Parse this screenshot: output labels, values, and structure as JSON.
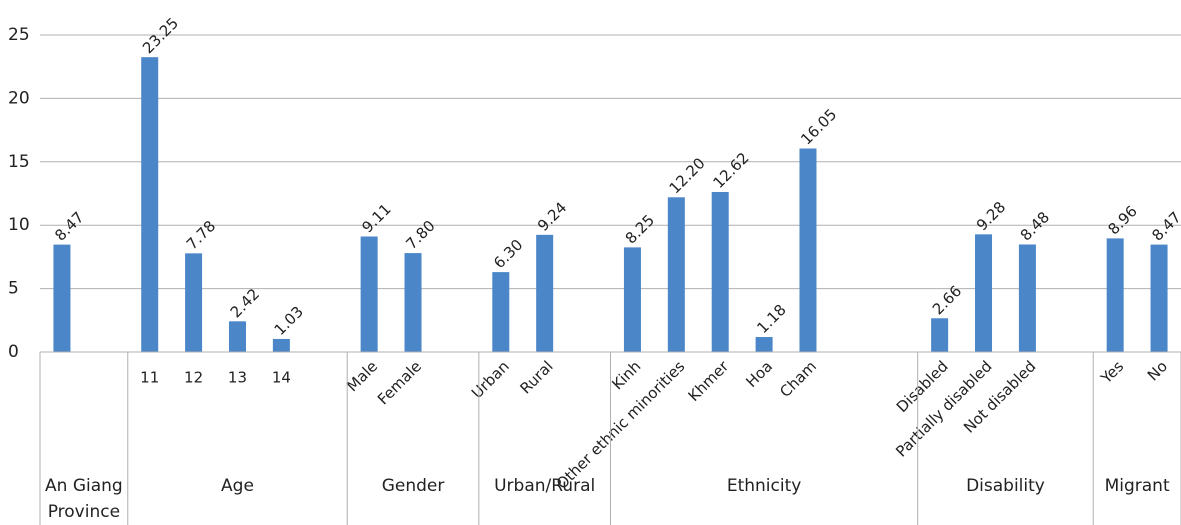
{
  "chart_data": {
    "type": "bar",
    "color": "#4a86c8",
    "ylim": [
      0,
      25
    ],
    "yticks": [
      0,
      5,
      10,
      15,
      20,
      25
    ],
    "grid": true,
    "groups": [
      {
        "name": "An Giang Province",
        "categories": [
          null,
          null
        ],
        "values": [
          8.47,
          null
        ],
        "value_labels": [
          "8.47",
          null
        ]
      },
      {
        "name": "Age",
        "categories": [
          "11",
          "12",
          "13",
          "14",
          null
        ],
        "values": [
          23.25,
          7.78,
          2.42,
          1.03,
          null
        ],
        "value_labels": [
          "23.25",
          "7.78",
          "2.42",
          "1.03",
          null
        ]
      },
      {
        "name": "Gender",
        "categories": [
          "Male",
          "Female",
          null
        ],
        "values": [
          9.11,
          7.8,
          null
        ],
        "value_labels": [
          "9.11",
          "7.80",
          null
        ]
      },
      {
        "name": "Urban/Rural",
        "categories": [
          "Urban",
          "Rural",
          null
        ],
        "values": [
          6.3,
          9.24,
          null
        ],
        "value_labels": [
          "6.30",
          "9.24",
          null
        ]
      },
      {
        "name": "Ethnicity",
        "categories": [
          "Kinh",
          "Other ethnic minorities",
          "Khmer",
          "Hoa",
          "Cham",
          null,
          null
        ],
        "values": [
          8.25,
          12.2,
          12.62,
          1.18,
          16.05,
          null,
          null
        ],
        "value_labels": [
          "8.25",
          "12.20",
          "12.62",
          "1.18",
          "16.05",
          null,
          null
        ]
      },
      {
        "name": "Disability",
        "categories": [
          "Disabled",
          "Partially disabled",
          "Not disabled",
          null
        ],
        "values": [
          2.66,
          9.28,
          8.48,
          null
        ],
        "value_labels": [
          "2.66",
          "9.28",
          "8.48",
          null
        ]
      },
      {
        "name": "Migrant",
        "categories": [
          "Yes",
          "No"
        ],
        "values": [
          8.96,
          8.47
        ],
        "value_labels": [
          "8.96",
          "8.47"
        ]
      }
    ]
  }
}
